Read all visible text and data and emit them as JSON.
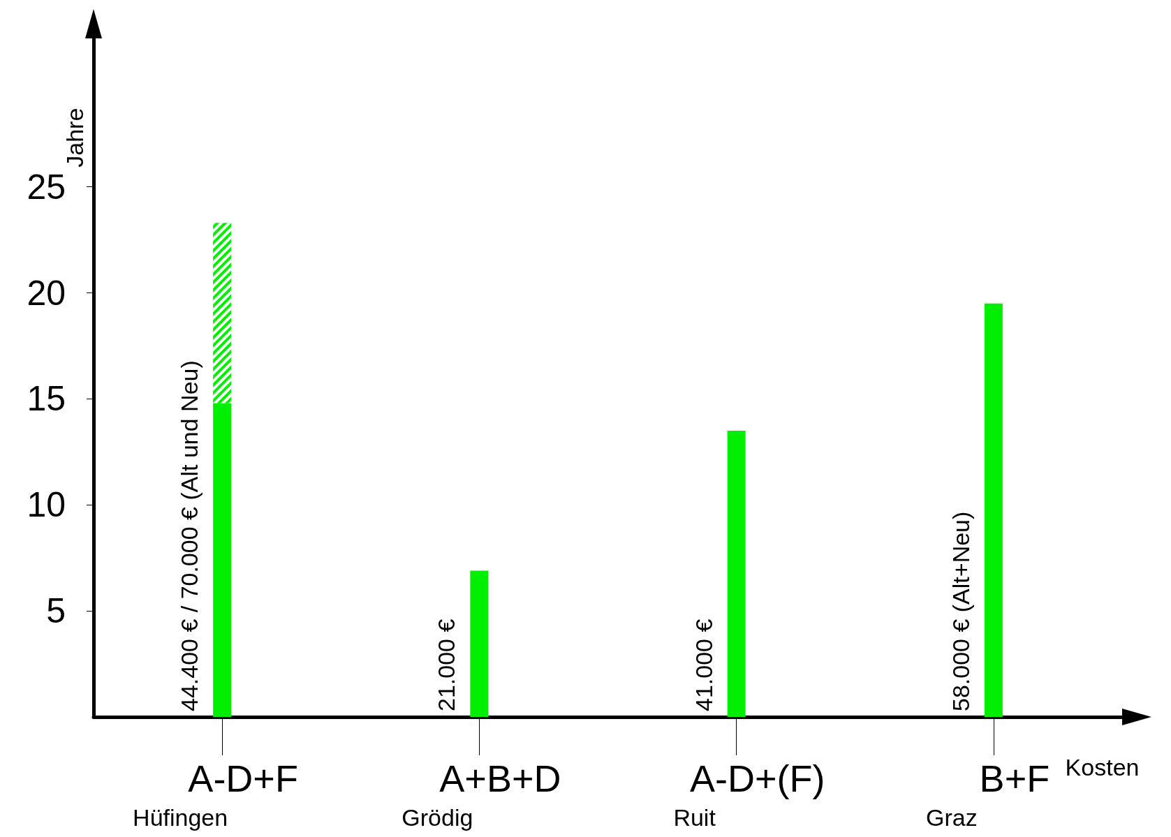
{
  "chart_data": {
    "type": "bar",
    "xlabel": "Kosten",
    "ylabel": "Jahre",
    "categories": [
      "A-D+F\nHüfingen",
      "A+B+D\nGrödig",
      "A-D+(F)\nRuit",
      "B+F\nGraz"
    ],
    "stacked": true,
    "series": [
      {
        "color": "#00ee00",
        "values": [
          14.8,
          6.9,
          13.5,
          19.5
        ]
      },
      {
        "color": "#00ee00",
        "values": [
          8.5,
          null,
          null,
          null
        ]
      }
    ],
    "ylim": [
      0,
      32
    ],
    "yticks": [
      5,
      10,
      15,
      20,
      25
    ],
    "grid": false,
    "annotations": [
      "44.400 € / 70.000 € (Alt und Neu)",
      "21.000 €",
      "41.000 €",
      "58.000 € (Alt+Neu)"
    ]
  }
}
